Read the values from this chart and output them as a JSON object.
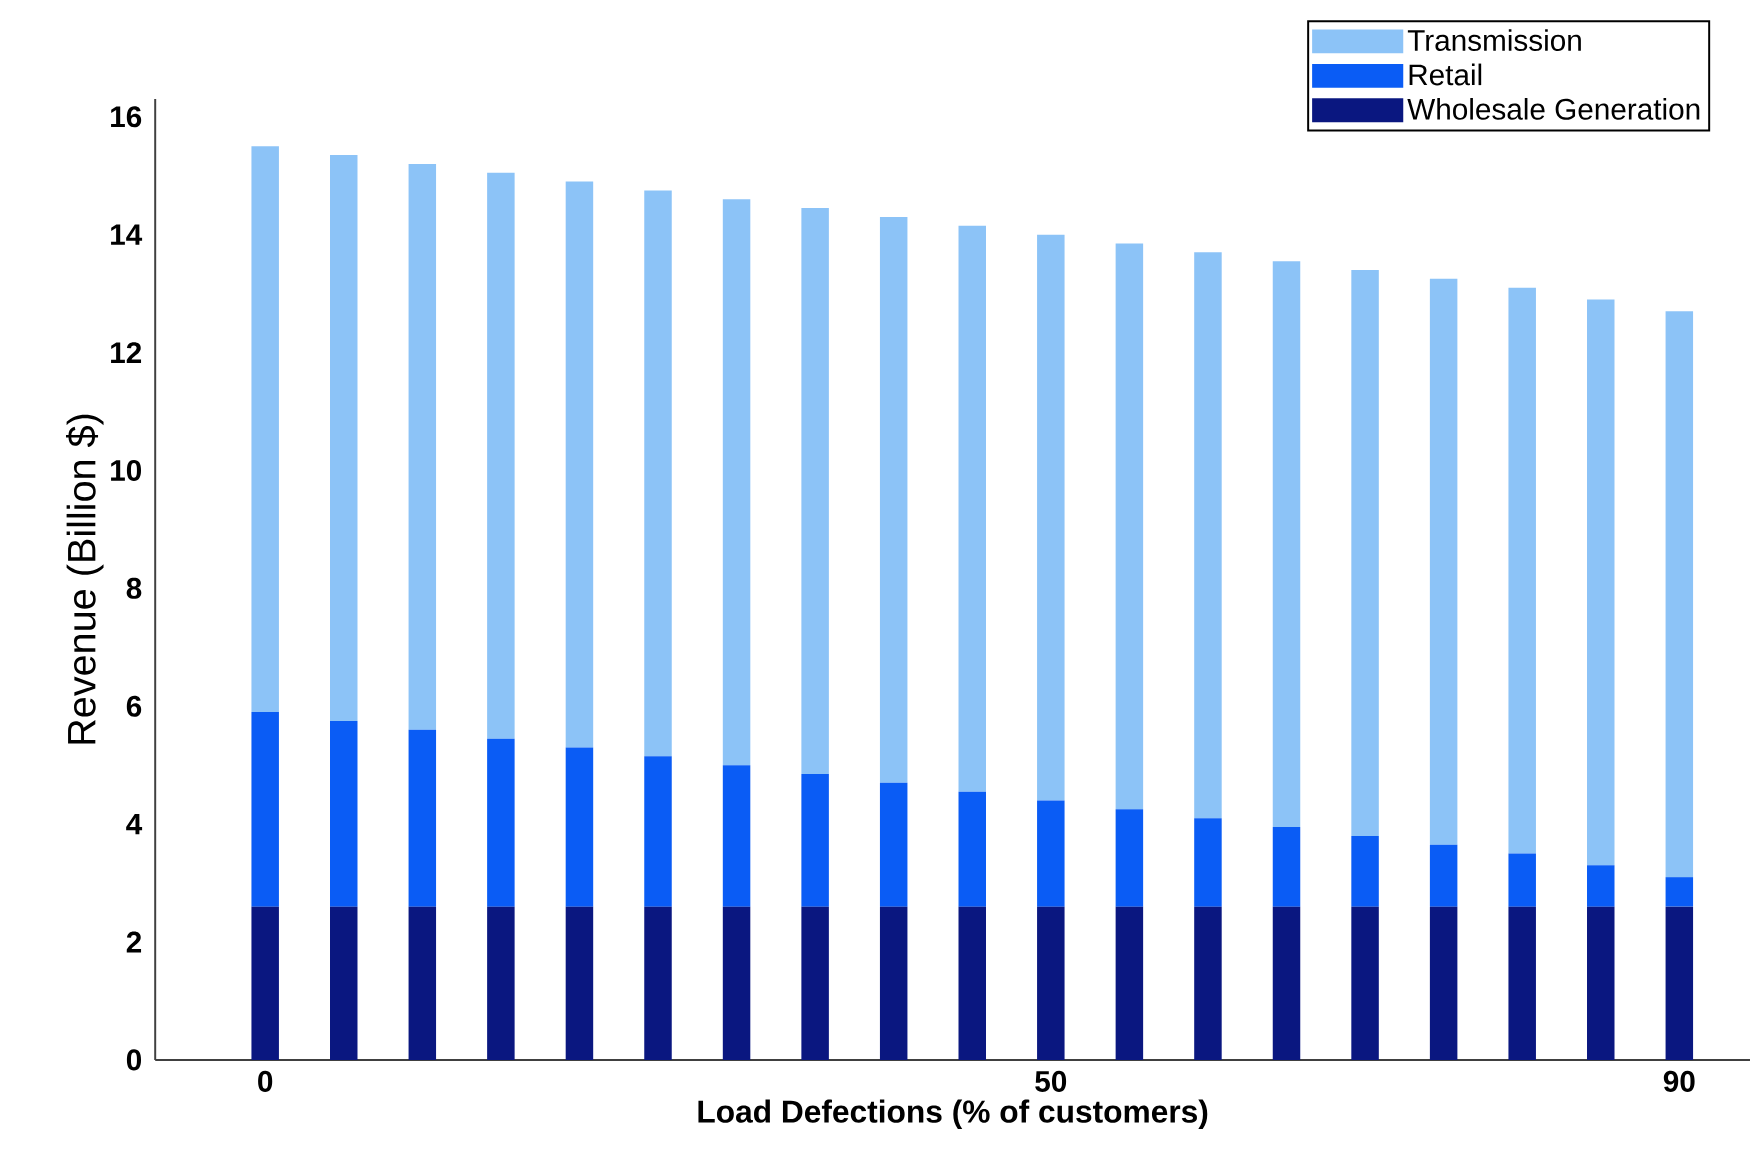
{
  "chart_data": {
    "type": "bar",
    "stacked": true,
    "xlabel": "Load Defections (% of customers)",
    "ylabel": "Revenue (Billion $)",
    "x": [
      0,
      5,
      10,
      15,
      20,
      25,
      30,
      35,
      40,
      45,
      50,
      55,
      60,
      65,
      70,
      75,
      80,
      85,
      90
    ],
    "series": [
      {
        "name": "Wholesale Generation",
        "color": "#0a1780",
        "values": [
          2.6,
          2.6,
          2.6,
          2.6,
          2.6,
          2.6,
          2.6,
          2.6,
          2.6,
          2.6,
          2.6,
          2.6,
          2.6,
          2.6,
          2.6,
          2.6,
          2.6,
          2.6,
          2.6
        ]
      },
      {
        "name": "Retail",
        "color": "#0a5cf5",
        "values": [
          3.3,
          3.15,
          3.0,
          2.85,
          2.7,
          2.55,
          2.4,
          2.25,
          2.1,
          1.95,
          1.8,
          1.65,
          1.5,
          1.35,
          1.2,
          1.05,
          0.9,
          0.7,
          0.5
        ]
      },
      {
        "name": "Transmission",
        "color": "#8cc3f7",
        "values": [
          9.6,
          9.6,
          9.6,
          9.6,
          9.6,
          9.6,
          9.6,
          9.6,
          9.6,
          9.6,
          9.6,
          9.6,
          9.6,
          9.6,
          9.6,
          9.6,
          9.6,
          9.6,
          9.6
        ]
      }
    ],
    "xlim": [
      -7,
      94.5
    ],
    "ylim": [
      0,
      16.3
    ],
    "xticks": [
      0,
      50,
      90
    ],
    "yticks": [
      0,
      2,
      4,
      6,
      8,
      10,
      12,
      14,
      16
    ],
    "grid": false,
    "legend": "top right"
  }
}
